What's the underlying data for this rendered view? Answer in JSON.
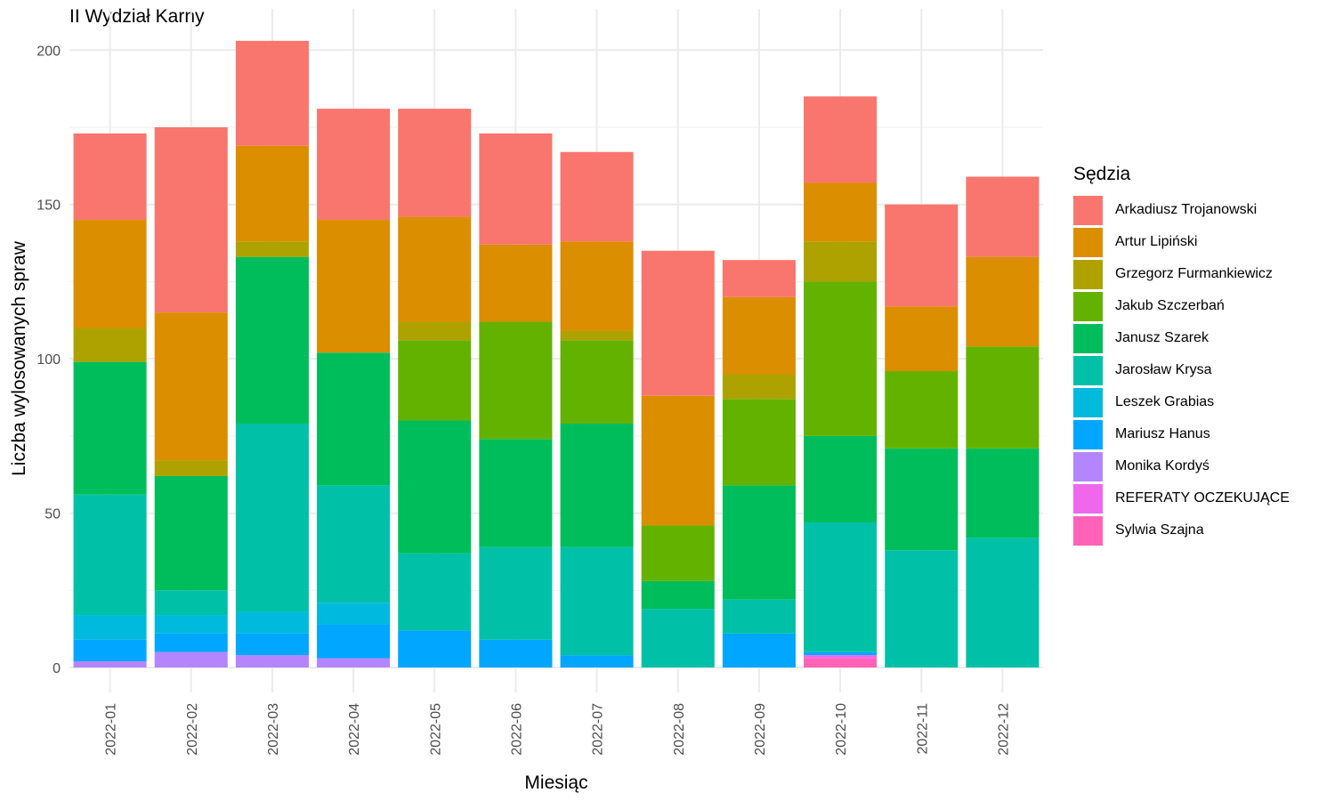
{
  "chart_data": {
    "type": "bar",
    "stacked": true,
    "title": "II Wydział Karny",
    "xlabel": "Miesiąc",
    "ylabel": "Liczba wylosowanych spraw",
    "ylim": [
      0,
      210
    ],
    "yticks": [
      0,
      50,
      100,
      150,
      200
    ],
    "grid": true,
    "legend_title": "Sędzia",
    "legend_position": "right",
    "categories": [
      "2022-01",
      "2022-02",
      "2022-03",
      "2022-04",
      "2022-05",
      "2022-06",
      "2022-07",
      "2022-08",
      "2022-09",
      "2022-10",
      "2022-11",
      "2022-12"
    ],
    "series": [
      {
        "name": "Arkadiusz Trojanowski",
        "color": "#F8766D",
        "values": [
          28,
          60,
          34,
          36,
          35,
          36,
          29,
          47,
          12,
          28,
          33,
          26
        ]
      },
      {
        "name": "Artur Lipiński",
        "color": "#DB8E00",
        "values": [
          35,
          48,
          31,
          43,
          34,
          25,
          29,
          42,
          25,
          19,
          21,
          29
        ]
      },
      {
        "name": "Grzegorz Furmankiewicz",
        "color": "#AEA200",
        "values": [
          11,
          5,
          5,
          0,
          6,
          0,
          3,
          0,
          8,
          13,
          0,
          0
        ]
      },
      {
        "name": "Jakub Szczerbań",
        "color": "#64B200",
        "values": [
          0,
          0,
          0,
          0,
          26,
          38,
          27,
          18,
          28,
          50,
          25,
          33
        ]
      },
      {
        "name": "Janusz Szarek",
        "color": "#00BD5C",
        "values": [
          43,
          37,
          54,
          43,
          43,
          35,
          40,
          9,
          37,
          28,
          33,
          29
        ]
      },
      {
        "name": "Jarosław Krysa",
        "color": "#00C1A7",
        "values": [
          39,
          8,
          61,
          38,
          25,
          30,
          35,
          19,
          11,
          42,
          38,
          42
        ]
      },
      {
        "name": "Leszek Grabias",
        "color": "#00BADE",
        "values": [
          8,
          6,
          7,
          7,
          0,
          0,
          0,
          0,
          0,
          0,
          0,
          0
        ]
      },
      {
        "name": "Mariusz Hanus",
        "color": "#00A6FF",
        "values": [
          7,
          6,
          7,
          11,
          12,
          9,
          4,
          0,
          11,
          1,
          0,
          0
        ]
      },
      {
        "name": "Monika Kordyś",
        "color": "#B385FF",
        "values": [
          2,
          5,
          4,
          3,
          0,
          0,
          0,
          0,
          0,
          0,
          0,
          0
        ]
      },
      {
        "name": "REFERATY OCZEKUJĄCE",
        "color": "#EF67EB",
        "values": [
          0,
          0,
          0,
          0,
          0,
          0,
          0,
          0,
          0,
          1,
          0,
          0
        ]
      },
      {
        "name": "Sylwia Szajna",
        "color": "#FF63B6",
        "values": [
          0,
          0,
          0,
          0,
          0,
          0,
          0,
          0,
          0,
          3,
          0,
          0
        ]
      }
    ]
  }
}
